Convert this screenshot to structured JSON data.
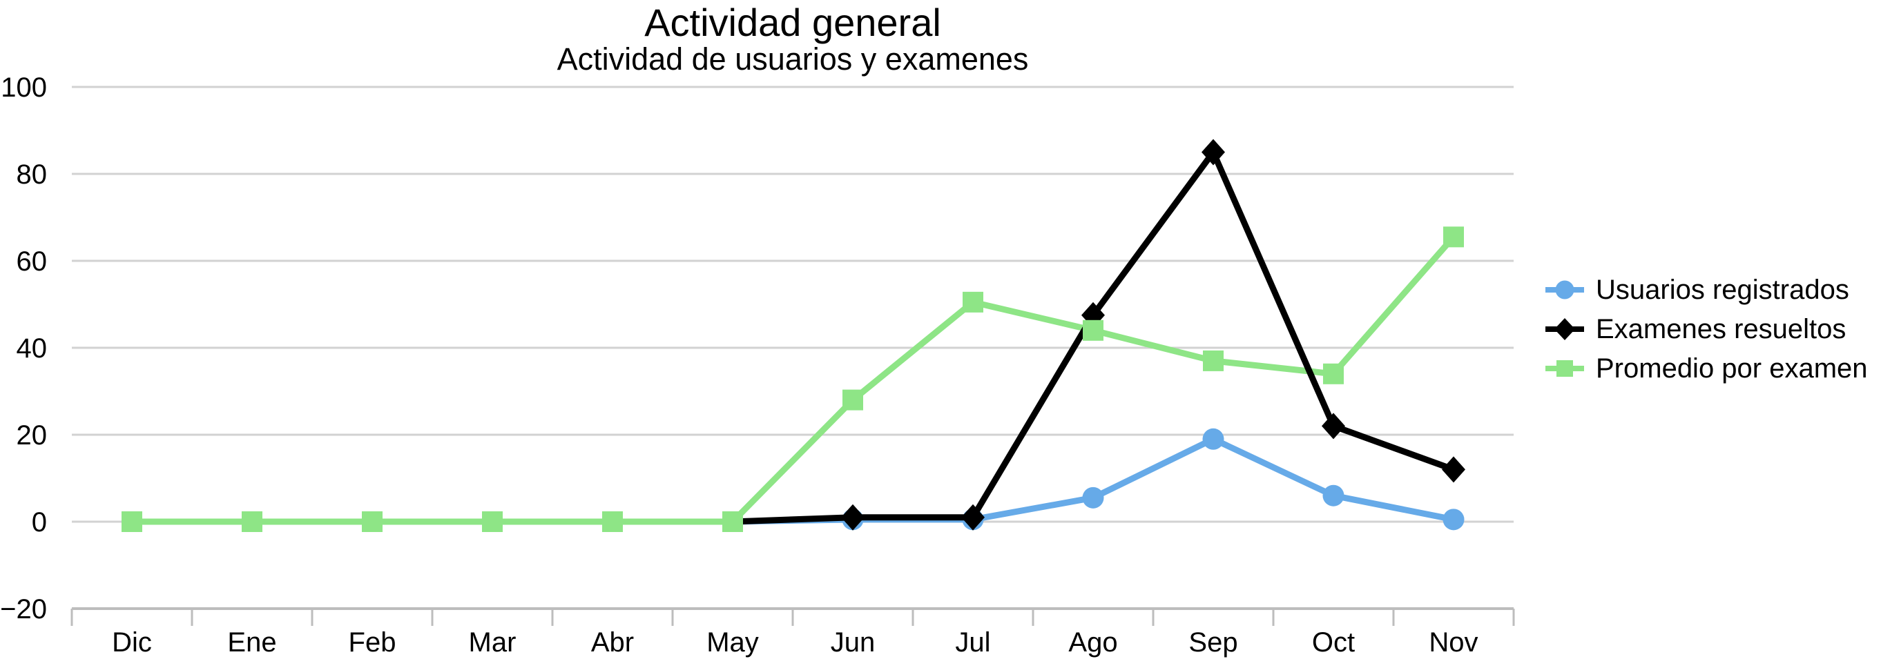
{
  "chart_data": {
    "type": "line",
    "title": "Actividad general",
    "subtitle": "Actividad de usuarios y examenes",
    "categories": [
      "Dic",
      "Ene",
      "Feb",
      "Mar",
      "Abr",
      "May",
      "Jun",
      "Jul",
      "Ago",
      "Sep",
      "Oct",
      "Nov"
    ],
    "xlabel": "",
    "ylabel": "",
    "ylim": [
      -20,
      100
    ],
    "yticks": [
      -20,
      0,
      20,
      40,
      60,
      80,
      100
    ],
    "grid": true,
    "legend_position": "right",
    "colors": {
      "gridline": "#d2d2d2",
      "axis_line": "#bdbdbd",
      "text": "#000000"
    },
    "series": [
      {
        "name": "Usuarios registrados",
        "color": "#66aae8",
        "marker": "circle",
        "values": [
          null,
          null,
          null,
          null,
          null,
          0,
          0.5,
          0.5,
          5.5,
          19,
          6,
          0.5
        ],
        "no_markers": [
          5
        ]
      },
      {
        "name": "Examenes resueltos",
        "color": "#000000",
        "marker": "diamond",
        "values": [
          null,
          null,
          null,
          null,
          null,
          0,
          1,
          1,
          47.5,
          85,
          22,
          12
        ],
        "no_markers": [
          5
        ]
      },
      {
        "name": "Promedio por examen",
        "color": "#8ee586",
        "marker": "square",
        "values": [
          0,
          0,
          0,
          0,
          0,
          0,
          28,
          50.5,
          44,
          37,
          34,
          65.5
        ],
        "no_markers": []
      }
    ]
  }
}
